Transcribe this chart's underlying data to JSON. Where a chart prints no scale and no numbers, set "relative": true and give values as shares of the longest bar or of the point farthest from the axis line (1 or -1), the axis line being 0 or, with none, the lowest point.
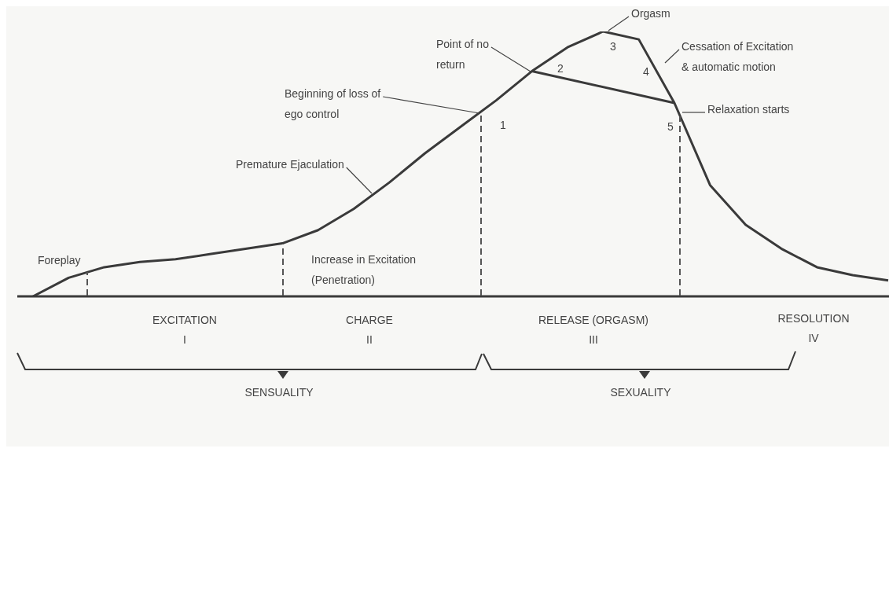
{
  "chart_data": {
    "type": "line",
    "relative": true,
    "categories": [
      null,
      null,
      null,
      null,
      null,
      null,
      null,
      null,
      null,
      null,
      null,
      null,
      null,
      null,
      null,
      null,
      null,
      null,
      null,
      null,
      null,
      null,
      null,
      null,
      null
    ],
    "tick_labels": false,
    "grid": false,
    "legend": false,
    "marker": "none",
    "series": [
      {
        "color": "#3a3a3a",
        "values": [
          0,
          0.07,
          0.11,
          0.13,
          0.14,
          0.16,
          0.18,
          0.2,
          0.25,
          0.33,
          0.43,
          0.54,
          0.64,
          0.74,
          0.85,
          0.94,
          1,
          0.97,
          0.73,
          0.42,
          0.27,
          0.18,
          0.11,
          0.08,
          0.06
        ]
      },
      {
        "color": "#3a3a3a",
        "values": [
          null,
          null,
          null,
          null,
          null,
          null,
          null,
          null,
          null,
          null,
          null,
          null,
          null,
          null,
          0.85,
          null,
          null,
          null,
          0.73,
          null,
          null,
          null,
          null,
          null,
          null
        ]
      }
    ],
    "annotations": [
      "Foreplay",
      "Increase in Excitation\n(Penetration)",
      "Premature Ejaculation",
      "Beginning of loss of\nego control",
      "Point of no\nreturn",
      "Orgasm",
      "Cessation of Excitation\n& automatic motion",
      "Relaxation starts",
      "1",
      "2",
      "3",
      "4",
      "5",
      "EXCITATION\nI",
      "CHARGE\nII",
      "RELEASE (ORGASM)\nIII",
      "RESOLUTION\nIV",
      "SENSUALITY",
      "SEXUALITY"
    ]
  }
}
